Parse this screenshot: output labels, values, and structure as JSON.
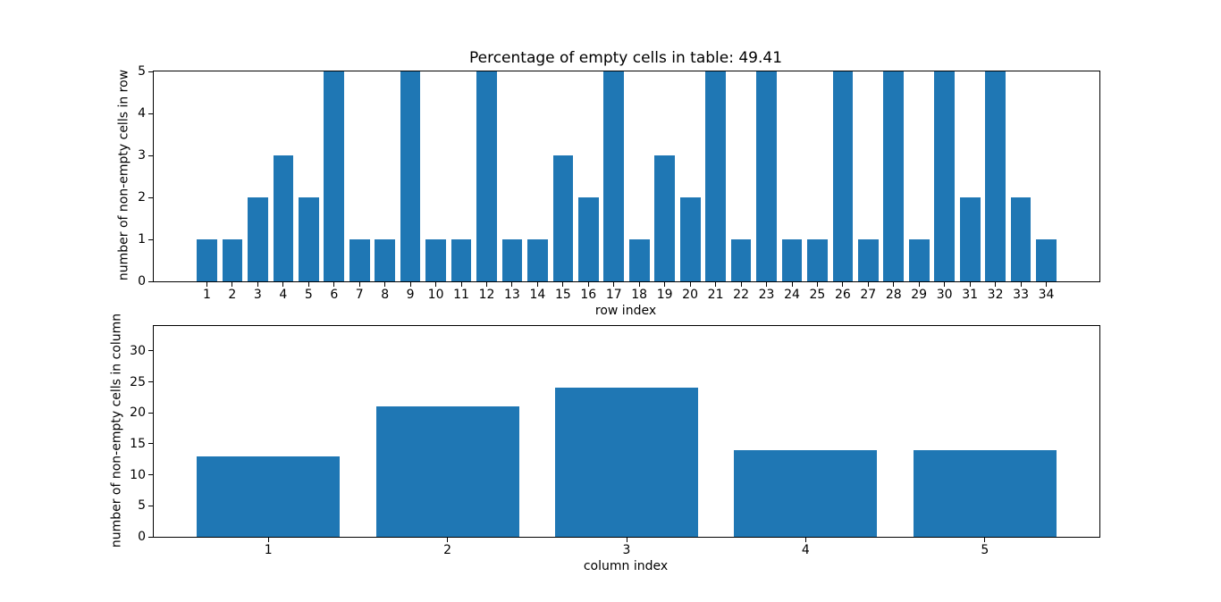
{
  "figure": {
    "background": "#ffffff",
    "spine_color": "#000000",
    "text_color": "#000000"
  },
  "chart_data": [
    {
      "type": "bar",
      "title": "Percentage of empty cells in table: 49.41",
      "xlabel": "row index",
      "ylabel": "number of non-empty cells in row",
      "categories": [
        "1",
        "2",
        "3",
        "4",
        "5",
        "6",
        "7",
        "8",
        "9",
        "10",
        "11",
        "12",
        "13",
        "14",
        "15",
        "16",
        "17",
        "18",
        "19",
        "20",
        "21",
        "22",
        "23",
        "24",
        "25",
        "26",
        "27",
        "28",
        "29",
        "30",
        "31",
        "32",
        "33",
        "34"
      ],
      "values": [
        1,
        1,
        2,
        3,
        2,
        5,
        1,
        1,
        5,
        1,
        1,
        5,
        1,
        1,
        3,
        2,
        5,
        1,
        3,
        2,
        5,
        1,
        5,
        1,
        1,
        5,
        1,
        5,
        1,
        5,
        2,
        5,
        2,
        1
      ],
      "bar_color": "#1f77b4",
      "bar_width": 0.8,
      "xlim": [
        -1.09,
        36.09
      ],
      "ylim": [
        0,
        5
      ],
      "yticks": [
        0,
        1,
        2,
        3,
        4,
        5
      ],
      "grid": false,
      "legend": null
    },
    {
      "type": "bar",
      "title": "",
      "xlabel": "column index",
      "ylabel": "number of non-empty cells in column",
      "categories": [
        "1",
        "2",
        "3",
        "4",
        "5"
      ],
      "values": [
        13,
        21,
        24,
        14,
        14
      ],
      "bar_color": "#1f77b4",
      "bar_width": 0.8,
      "xlim": [
        0.36,
        5.64
      ],
      "ylim": [
        0,
        34
      ],
      "yticks": [
        0,
        5,
        10,
        15,
        20,
        25,
        30
      ],
      "grid": false,
      "legend": null
    }
  ]
}
